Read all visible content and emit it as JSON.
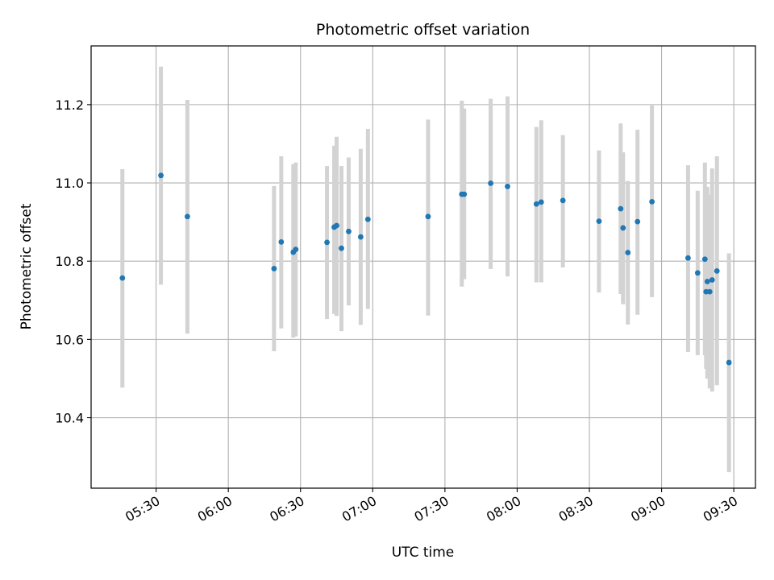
{
  "chart_data": {
    "type": "scatter",
    "title": "Photometric offset variation",
    "xlabel": "UTC time",
    "ylabel": "Photometric offset",
    "x_unit": "time HH:MM (UTC)",
    "xlim": [
      "05:03",
      "09:39"
    ],
    "ylim": [
      10.22,
      11.35
    ],
    "grid": true,
    "legend": "none",
    "x_ticks": [
      "05:30",
      "06:00",
      "06:30",
      "07:00",
      "07:30",
      "08:00",
      "08:30",
      "09:00",
      "09:30"
    ],
    "y_ticks": [
      "10.4",
      "10.6",
      "10.8",
      "11.0",
      "11.2"
    ],
    "colors": {
      "marker": "#1f77b4",
      "errorbar": "#d3d3d3",
      "grid": "#b0b0b0"
    },
    "points": [
      {
        "time": "05:16",
        "y": 10.757,
        "low": 10.477,
        "high": 11.035
      },
      {
        "time": "05:32",
        "y": 11.019,
        "low": 10.74,
        "high": 11.297
      },
      {
        "time": "05:43",
        "y": 10.914,
        "low": 10.615,
        "high": 11.212
      },
      {
        "time": "06:19",
        "y": 10.781,
        "low": 10.57,
        "high": 10.992
      },
      {
        "time": "06:22",
        "y": 10.849,
        "low": 10.628,
        "high": 11.068
      },
      {
        "time": "06:27",
        "y": 10.823,
        "low": 10.605,
        "high": 11.048
      },
      {
        "time": "06:28",
        "y": 10.83,
        "low": 10.608,
        "high": 11.052
      },
      {
        "time": "06:41",
        "y": 10.848,
        "low": 10.652,
        "high": 11.043
      },
      {
        "time": "06:44",
        "y": 10.887,
        "low": 10.665,
        "high": 11.095
      },
      {
        "time": "06:45",
        "y": 10.891,
        "low": 10.66,
        "high": 11.118
      },
      {
        "time": "06:47",
        "y": 10.833,
        "low": 10.621,
        "high": 11.043
      },
      {
        "time": "06:50",
        "y": 10.876,
        "low": 10.687,
        "high": 11.065
      },
      {
        "time": "06:55",
        "y": 10.862,
        "low": 10.637,
        "high": 11.087
      },
      {
        "time": "06:58",
        "y": 10.907,
        "low": 10.678,
        "high": 11.138
      },
      {
        "time": "07:23",
        "y": 10.914,
        "low": 10.661,
        "high": 11.162
      },
      {
        "time": "07:37",
        "y": 10.971,
        "low": 10.735,
        "high": 11.21
      },
      {
        "time": "07:38",
        "y": 10.971,
        "low": 10.754,
        "high": 11.19
      },
      {
        "time": "07:49",
        "y": 10.999,
        "low": 10.78,
        "high": 11.215
      },
      {
        "time": "07:56",
        "y": 10.991,
        "low": 10.761,
        "high": 11.221
      },
      {
        "time": "08:08",
        "y": 10.946,
        "low": 10.746,
        "high": 11.143
      },
      {
        "time": "08:10",
        "y": 10.951,
        "low": 10.746,
        "high": 11.16
      },
      {
        "time": "08:19",
        "y": 10.955,
        "low": 10.784,
        "high": 11.122
      },
      {
        "time": "08:34",
        "y": 10.902,
        "low": 10.72,
        "high": 11.083
      },
      {
        "time": "08:43",
        "y": 10.934,
        "low": 10.716,
        "high": 11.152
      },
      {
        "time": "08:44",
        "y": 10.885,
        "low": 10.69,
        "high": 11.078
      },
      {
        "time": "08:46",
        "y": 10.822,
        "low": 10.638,
        "high": 11.005
      },
      {
        "time": "08:50",
        "y": 10.901,
        "low": 10.663,
        "high": 11.136
      },
      {
        "time": "08:56",
        "y": 10.952,
        "low": 10.708,
        "high": 11.198
      },
      {
        "time": "09:11",
        "y": 10.808,
        "low": 10.568,
        "high": 11.045
      },
      {
        "time": "09:15",
        "y": 10.77,
        "low": 10.56,
        "high": 10.98
      },
      {
        "time": "09:18",
        "y": 10.805,
        "low": 10.56,
        "high": 11.052
      },
      {
        "time": "09:18.5",
        "y": 10.722,
        "low": 10.525,
        "high": 10.97
      },
      {
        "time": "09:19",
        "y": 10.748,
        "low": 10.5,
        "high": 10.99
      },
      {
        "time": "09:20",
        "y": 10.722,
        "low": 10.475,
        "high": 10.97
      },
      {
        "time": "09:21",
        "y": 10.752,
        "low": 10.467,
        "high": 11.037
      },
      {
        "time": "09:23",
        "y": 10.775,
        "low": 10.483,
        "high": 11.068
      },
      {
        "time": "09:28",
        "y": 10.541,
        "low": 10.261,
        "high": 10.82
      }
    ]
  }
}
